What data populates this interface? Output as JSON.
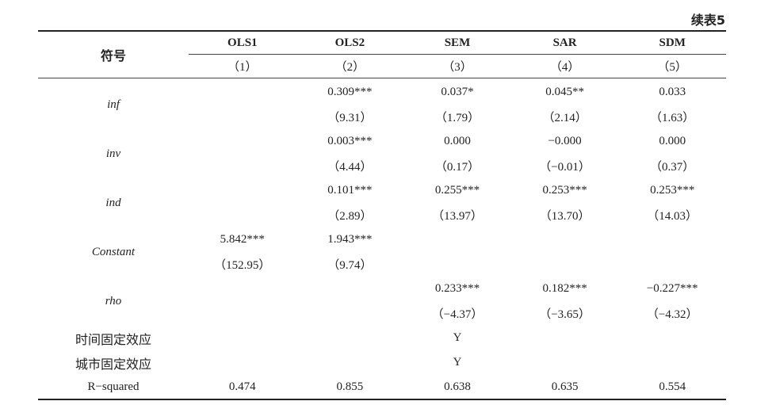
{
  "caption": "续表5",
  "header": {
    "symbol_label": "符号",
    "models": [
      {
        "name": "OLS1",
        "num": "（1）"
      },
      {
        "name": "OLS2",
        "num": "（2）"
      },
      {
        "name": "SEM",
        "num": "（3）"
      },
      {
        "name": "SAR",
        "num": "（4）"
      },
      {
        "name": "SDM",
        "num": "（5）"
      }
    ]
  },
  "rows": {
    "inf": {
      "label": "inf",
      "coef": [
        "",
        "0.309***",
        "0.037*",
        "0.045**",
        "0.033"
      ],
      "t": [
        "",
        "（9.31）",
        "（1.79）",
        "（2.14）",
        "（1.63）"
      ]
    },
    "inv": {
      "label": "inv",
      "coef": [
        "",
        "0.003***",
        "0.000",
        "−0.000",
        "0.000"
      ],
      "t": [
        "",
        "（4.44）",
        "（0.17）",
        "（−0.01）",
        "（0.37）"
      ]
    },
    "ind": {
      "label": "ind",
      "coef": [
        "",
        "0.101***",
        "0.255***",
        "0.253***",
        "0.253***"
      ],
      "t": [
        "",
        "（2.89）",
        "（13.97）",
        "（13.70）",
        "（14.03）"
      ]
    },
    "constant": {
      "label": "Constant",
      "coef": [
        "5.842***",
        "1.943***",
        "",
        "",
        ""
      ],
      "t": [
        "（152.95）",
        "（9.74）",
        "",
        "",
        ""
      ]
    },
    "rho": {
      "label": "rho",
      "coef": [
        "",
        "",
        "0.233***",
        "0.182***",
        "−0.227***"
      ],
      "t": [
        "",
        "",
        "（−4.37）",
        "（−3.65）",
        "（−4.32）"
      ]
    },
    "time_fe": {
      "label": "时间固定效应",
      "values": [
        "",
        "",
        "Y",
        "",
        ""
      ]
    },
    "city_fe": {
      "label": "城市固定效应",
      "values": [
        "",
        "",
        "Y",
        "",
        ""
      ]
    },
    "rsq": {
      "label": "R−squared",
      "values": [
        "0.474",
        "0.855",
        "0.638",
        "0.635",
        "0.554"
      ]
    }
  }
}
